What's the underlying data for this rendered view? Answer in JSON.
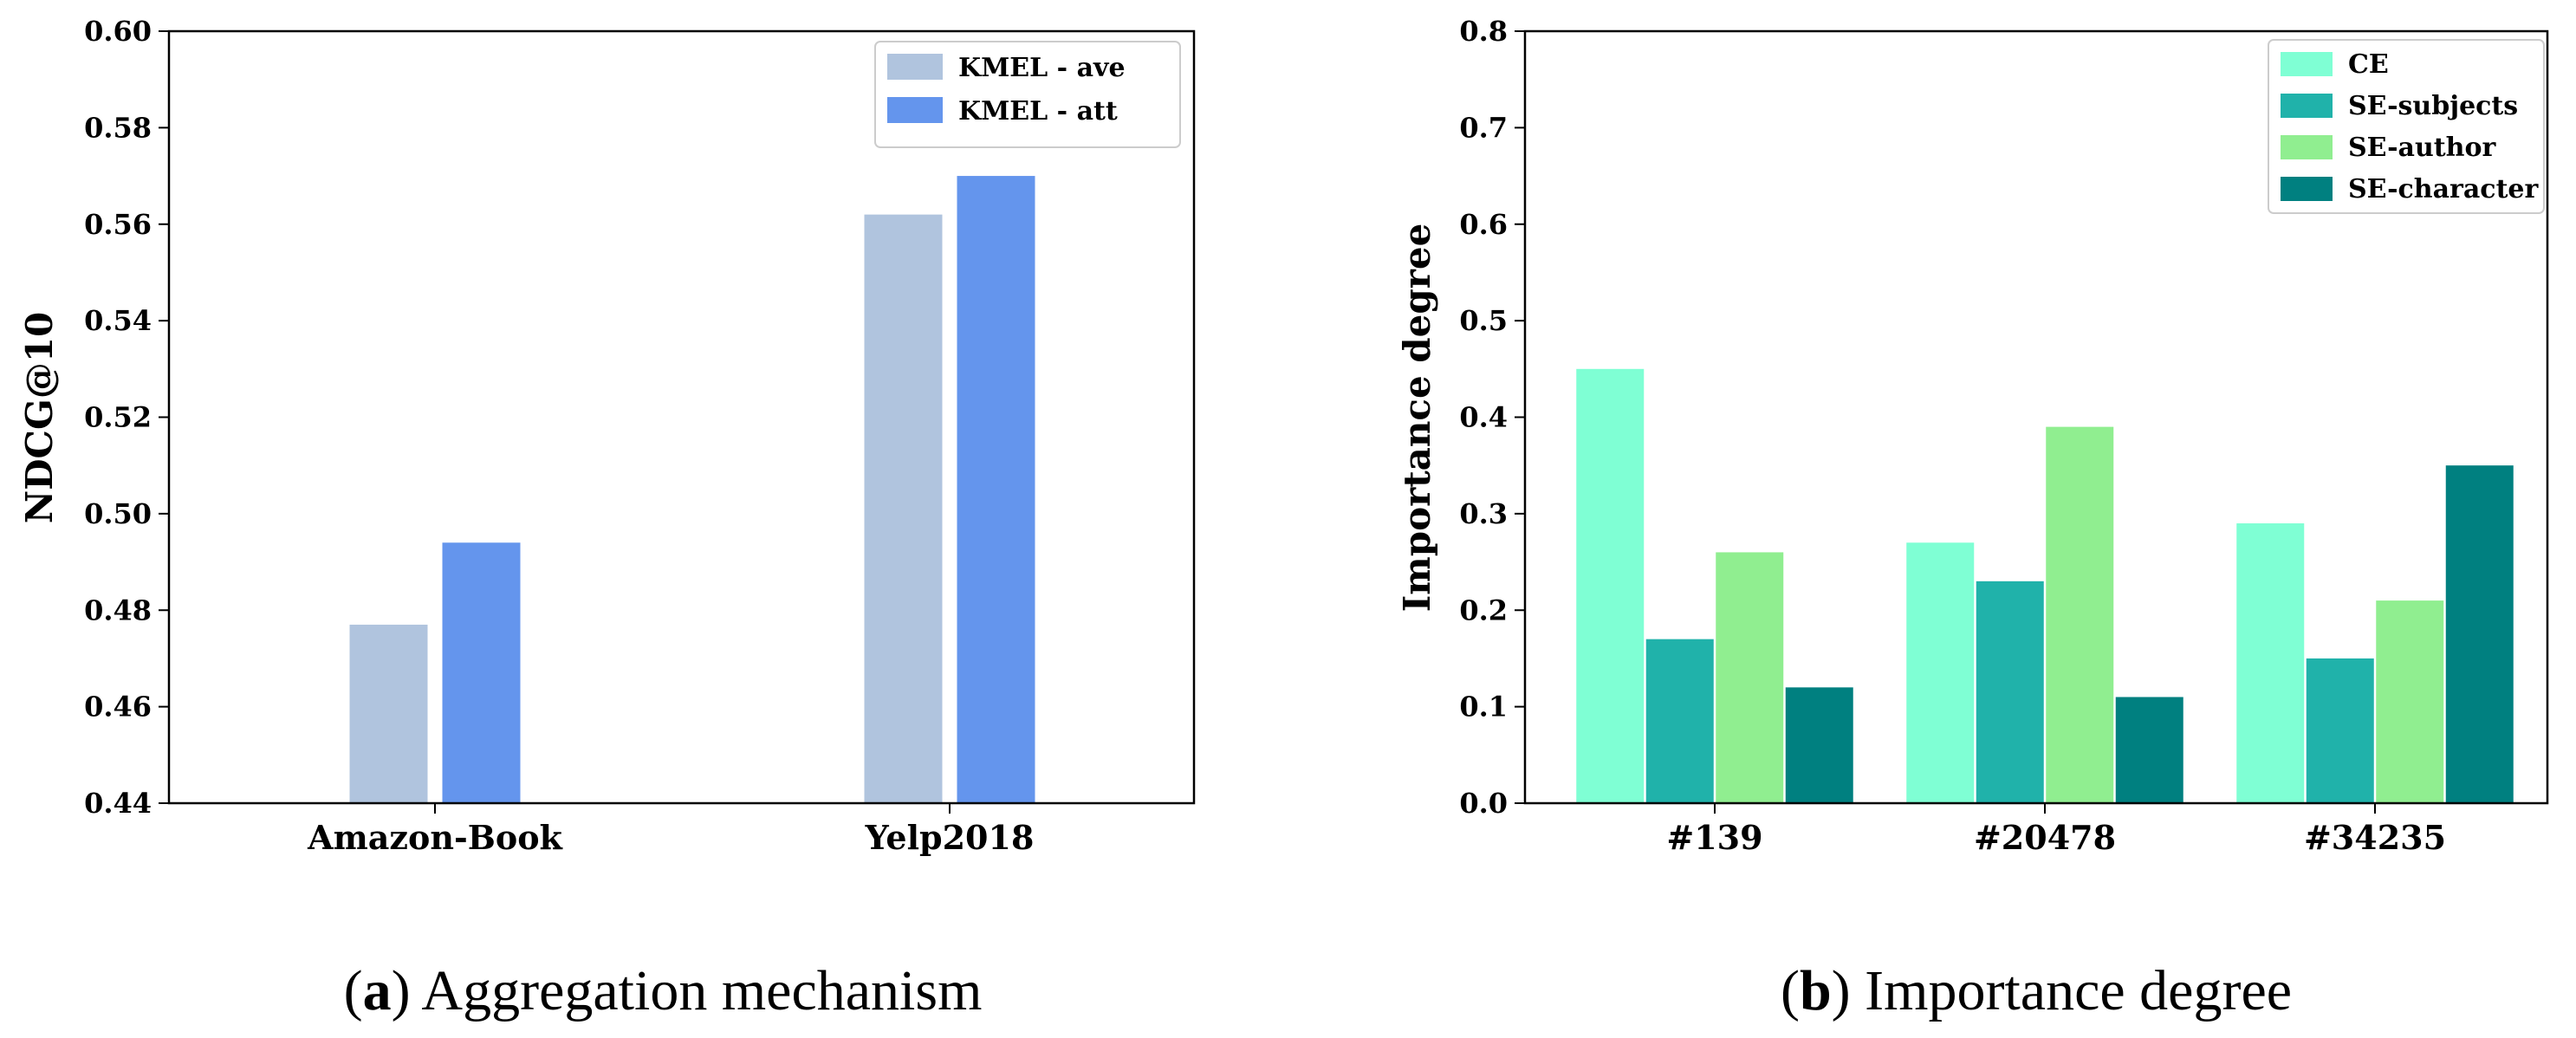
{
  "chart_data": [
    {
      "type": "bar",
      "categories": [
        "Amazon-Book",
        "Yelp2018"
      ],
      "series": [
        {
          "name": "KMEL - ave",
          "color": "#b0c4de",
          "values": [
            0.477,
            0.562
          ]
        },
        {
          "name": "KMEL - att",
          "color": "#6495ed",
          "values": [
            0.494,
            0.57
          ]
        }
      ],
      "ylabel": "NDCG@10",
      "xlabel": "",
      "ylim": [
        0.44,
        0.6
      ],
      "yticks": [
        "0.44",
        "0.46",
        "0.48",
        "0.50",
        "0.52",
        "0.54",
        "0.56",
        "0.58",
        "0.60"
      ],
      "legend": "top-right",
      "caption": {
        "letter": "a",
        "text": "Aggregation mechanism"
      }
    },
    {
      "type": "bar",
      "categories": [
        "#139",
        "#20478",
        "#34235"
      ],
      "series": [
        {
          "name": "CE",
          "color": "#7fffd4",
          "values": [
            0.45,
            0.27,
            0.29
          ]
        },
        {
          "name": "SE-subjects",
          "color": "#20b2aa",
          "values": [
            0.17,
            0.23,
            0.15
          ]
        },
        {
          "name": "SE-author",
          "color": "#90ee90",
          "values": [
            0.26,
            0.39,
            0.21
          ]
        },
        {
          "name": "SE-character",
          "color": "#008080",
          "values": [
            0.12,
            0.11,
            0.35
          ]
        }
      ],
      "ylabel": "Importance degree",
      "xlabel": "",
      "ylim": [
        0.0,
        0.8
      ],
      "yticks": [
        "0.0",
        "0.1",
        "0.2",
        "0.3",
        "0.4",
        "0.5",
        "0.6",
        "0.7",
        "0.8"
      ],
      "legend": "top-right",
      "caption": {
        "letter": "b",
        "text": "Importance degree"
      }
    }
  ]
}
